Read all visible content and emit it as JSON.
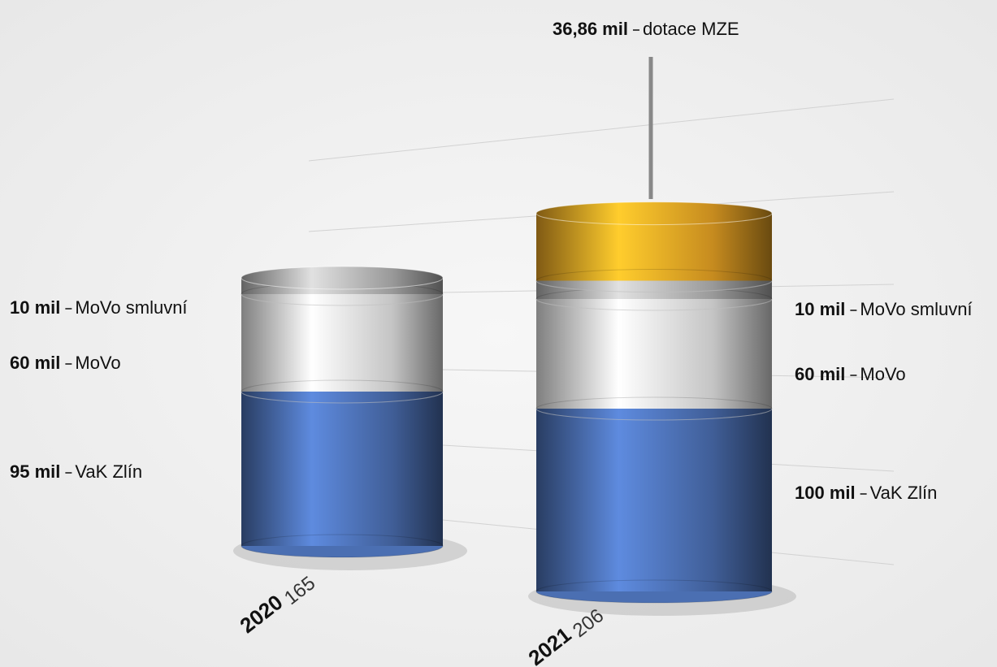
{
  "chart_data": {
    "type": "bar",
    "stacked": true,
    "categories": [
      "2020",
      "2021"
    ],
    "totals": [
      165,
      206
    ],
    "series": [
      {
        "name": "VaK Zlín",
        "color": "#4b6fb2",
        "values": [
          95,
          100
        ],
        "value_labels": [
          "95 mil",
          "100 mil"
        ]
      },
      {
        "name": "MoVo",
        "color": "#e6e6e6",
        "values": [
          60,
          60
        ],
        "value_labels": [
          "60 mil",
          "60 mil"
        ]
      },
      {
        "name": "MoVo smluvní",
        "color": "#b4b4b4",
        "values": [
          10,
          10
        ],
        "value_labels": [
          "10 mil",
          "10 mil"
        ]
      },
      {
        "name": "dotace MZE",
        "color": "#e9a424",
        "values": [
          null,
          36.86
        ],
        "value_labels": [
          null,
          "36,86 mil"
        ]
      }
    ]
  }
}
